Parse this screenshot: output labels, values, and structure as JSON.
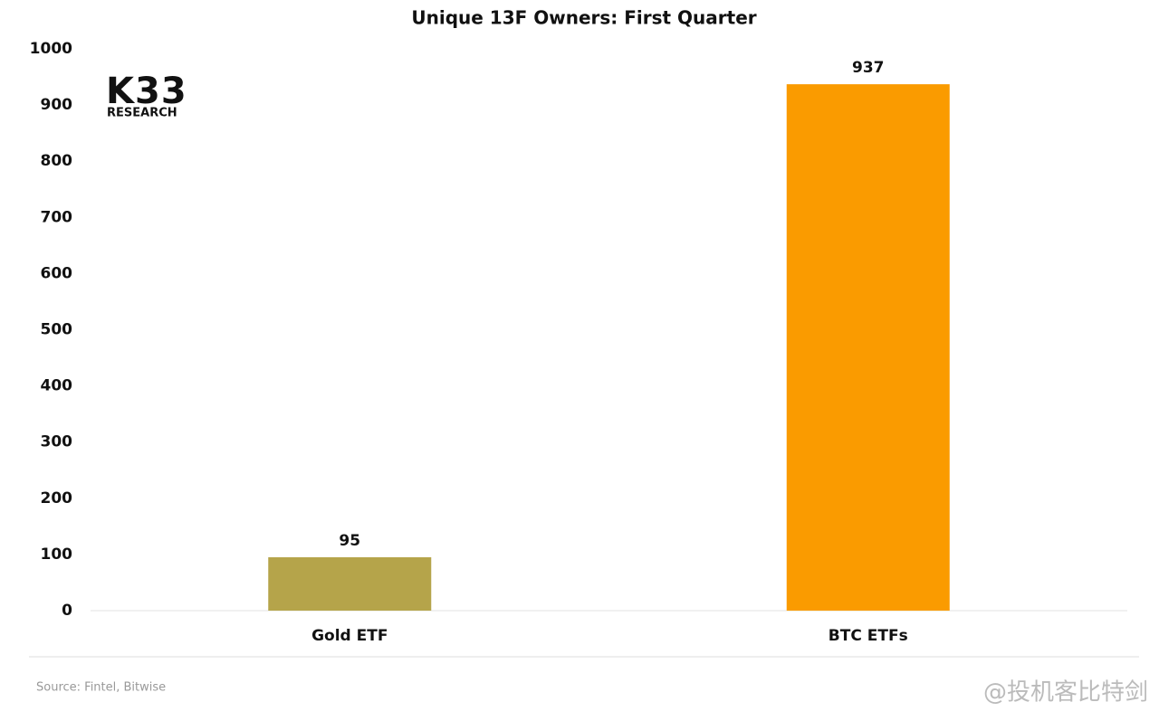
{
  "chart_data": {
    "type": "bar",
    "title": "Unique 13F Owners: First Quarter",
    "categories": [
      "Gold ETF",
      "BTC ETFs"
    ],
    "values": [
      95,
      937
    ],
    "colors": [
      "#b5a44a",
      "#fa9b00"
    ],
    "ylim": [
      0,
      1000
    ],
    "yticks": [
      0,
      100,
      200,
      300,
      400,
      500,
      600,
      700,
      800,
      900,
      1000
    ],
    "grid": false
  },
  "logo": {
    "name": "K33",
    "subtitle": "RESEARCH"
  },
  "source": "Source:  Fintel, Bitwise",
  "watermark": "@投机客比特剑"
}
